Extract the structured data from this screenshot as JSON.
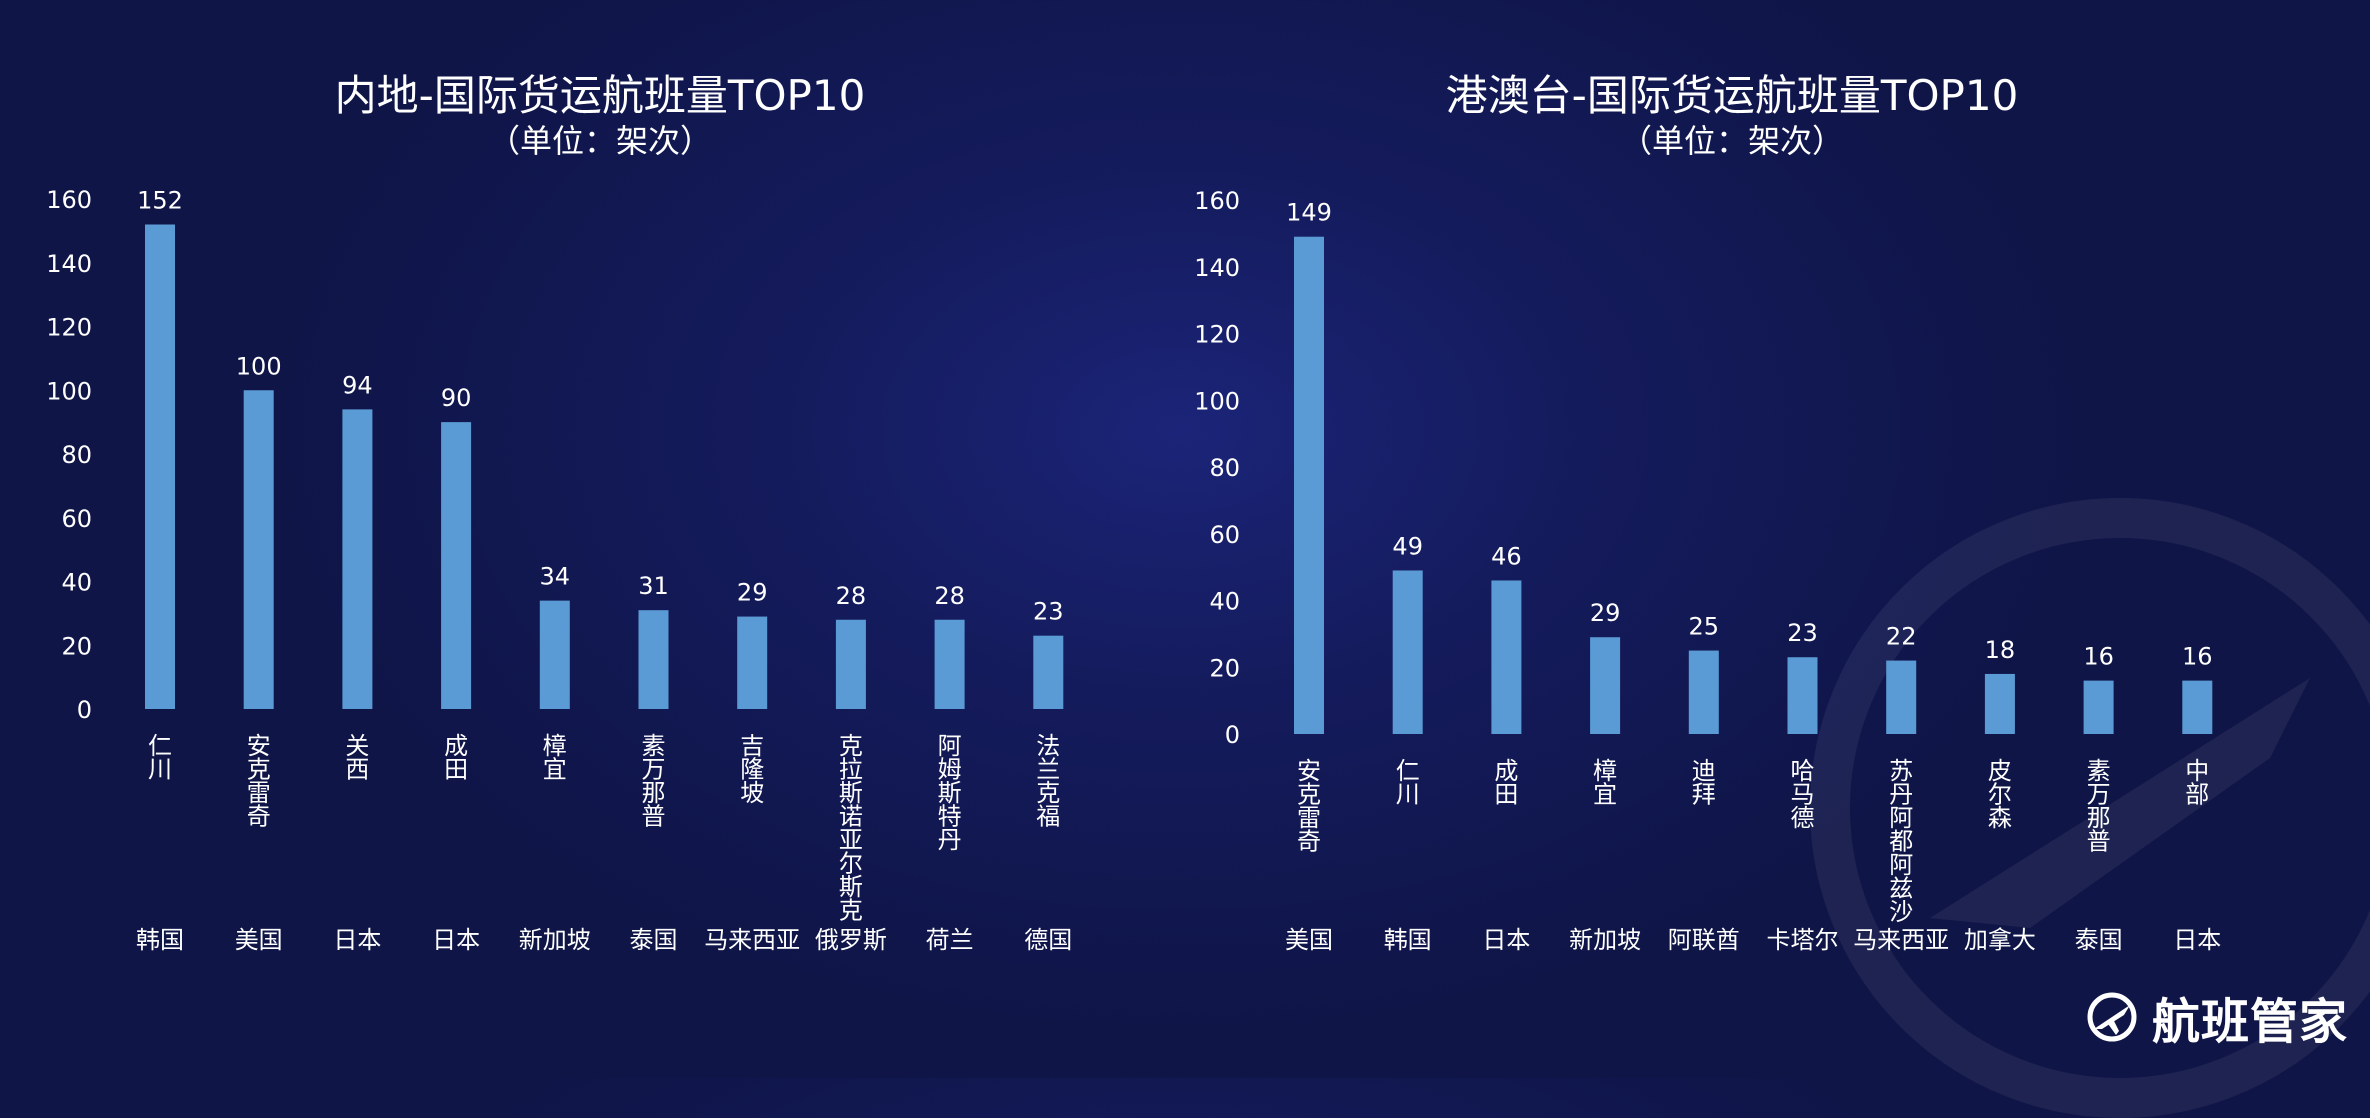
{
  "brand": {
    "name": "航班管家",
    "icon": "plane-logo-icon"
  },
  "colors": {
    "bar": "#5b9bd5",
    "text": "#ffffff",
    "axis_text": "#ffffff"
  },
  "chart_data": [
    {
      "type": "bar",
      "title": "内地-国际货运航班量TOP10",
      "subtitle": "（单位：架次）",
      "categories": [
        "仁川",
        "安克雷奇",
        "关西",
        "成田",
        "樟宜",
        "素万那普",
        "吉隆坡",
        "克拉斯诺亚尔斯克",
        "阿姆斯特丹",
        "法兰克福"
      ],
      "countries": [
        "韩国",
        "美国",
        "日本",
        "日本",
        "新加坡",
        "泰国",
        "马来西亚",
        "俄罗斯",
        "荷兰",
        "德国"
      ],
      "values": [
        152,
        100,
        94,
        90,
        34,
        31,
        29,
        28,
        28,
        23
      ],
      "yticks": [
        "0",
        "20",
        "40",
        "60",
        "80",
        "100",
        "120",
        "140",
        "160"
      ],
      "ylim": [
        0,
        160
      ],
      "grid": false,
      "legend": "none"
    },
    {
      "type": "bar",
      "title": "港澳台-国际货运航班量TOP10",
      "subtitle": "（单位：架次）",
      "categories": [
        "安克雷奇",
        "仁川",
        "成田",
        "樟宜",
        "迪拜",
        "哈马德",
        "苏丹阿都阿兹沙",
        "皮尔森",
        "素万那普",
        "中部"
      ],
      "countries": [
        "美国",
        "韩国",
        "日本",
        "新加坡",
        "阿联酋",
        "卡塔尔",
        "马来西亚",
        "加拿大",
        "泰国",
        "日本"
      ],
      "values": [
        149,
        49,
        46,
        29,
        25,
        23,
        22,
        18,
        16,
        16
      ],
      "yticks": [
        "0",
        "20",
        "40",
        "60",
        "80",
        "100",
        "120",
        "140",
        "160"
      ],
      "ylim": [
        0,
        160
      ],
      "grid": false,
      "legend": "none"
    }
  ]
}
